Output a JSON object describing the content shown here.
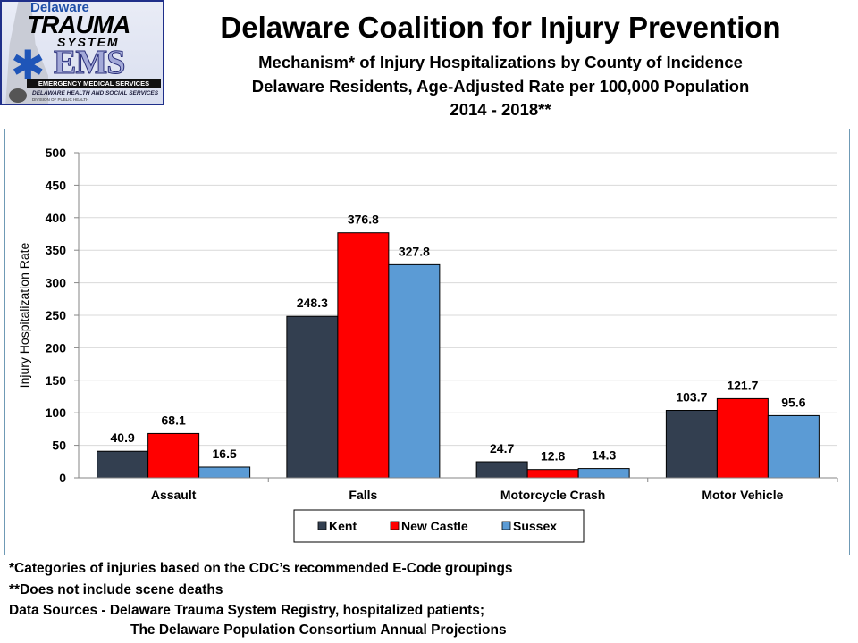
{
  "logo": {
    "line1": "Delaware",
    "line2": "TRAUMA",
    "line3": "SYSTEM",
    "ems": "EMS",
    "band": "EMERGENCY MEDICAL SERVICES",
    "dhss": "DELAWARE HEALTH AND SOCIAL SERVICES",
    "division": "DIVISION OF PUBLIC HEALTH"
  },
  "header": {
    "title": "Delaware Coalition for Injury Prevention",
    "subtitle1": "Mechanism* of Injury Hospitalizations by County of Incidence",
    "subtitle2": "Delaware Residents, Age-Adjusted Rate per 100,000 Population",
    "subtitle3": "2014 - 2018**"
  },
  "chart_data": {
    "type": "bar",
    "title": "Mechanism* of Injury Hospitalizations by County of Incidence",
    "xlabel": "",
    "ylabel": "Injury Hospitalization Rate",
    "ylim": [
      0,
      500
    ],
    "yticks": [
      0,
      50,
      100,
      150,
      200,
      250,
      300,
      350,
      400,
      450,
      500
    ],
    "grid": true,
    "legend_position": "bottom",
    "categories": [
      "Assault",
      "Falls",
      "Motorcycle Crash",
      "Motor Vehicle"
    ],
    "series": [
      {
        "name": "Kent",
        "color": "#333f50",
        "values": [
          40.9,
          248.3,
          24.7,
          103.7
        ]
      },
      {
        "name": "New Castle",
        "color": "#ff0000",
        "values": [
          68.1,
          376.8,
          12.8,
          121.7
        ]
      },
      {
        "name": "Sussex",
        "color": "#5b9bd5",
        "values": [
          16.5,
          327.8,
          14.3,
          95.6
        ]
      }
    ]
  },
  "footnotes": {
    "note1": "*Categories of injuries based on the CDC’s recommended E-Code groupings",
    "note2": "**Does not include scene deaths",
    "source1": "Data Sources - Delaware Trauma System Registry, hospitalized patients;",
    "source2": "The Delaware Population Consortium Annual Projections"
  }
}
